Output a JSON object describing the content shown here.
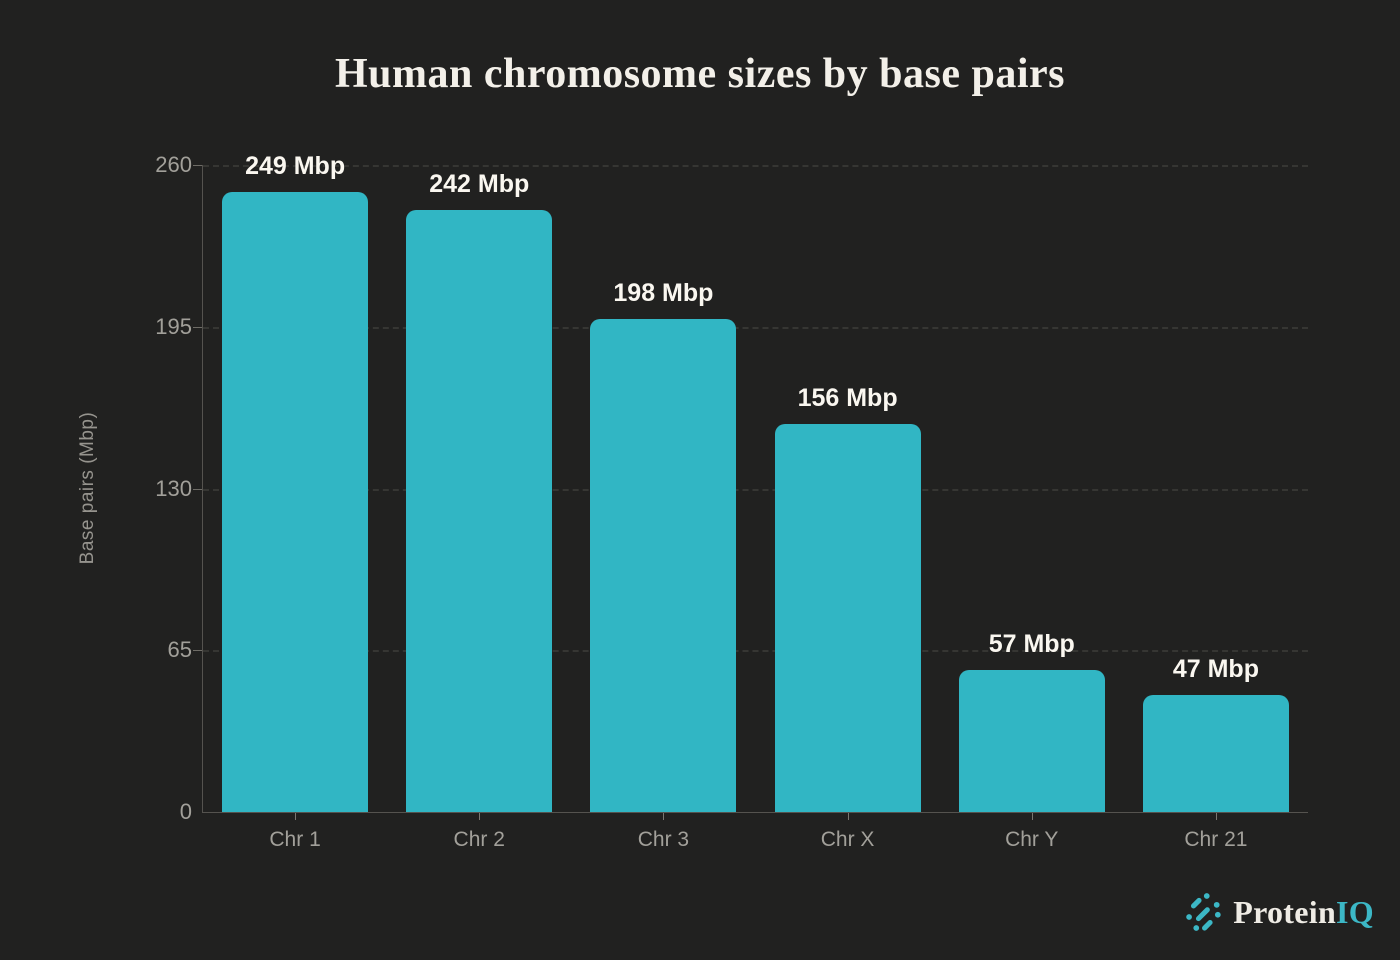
{
  "title": "Human chromosome sizes by base pairs",
  "chart_data": {
    "type": "bar",
    "title": "Human chromosome sizes by base pairs",
    "categories": [
      "Chr 1",
      "Chr 2",
      "Chr 3",
      "Chr X",
      "Chr Y",
      "Chr 21"
    ],
    "values": [
      249,
      242,
      198,
      156,
      57,
      47
    ],
    "bar_labels": [
      "249 Mbp",
      "242 Mbp",
      "198 Mbp",
      "156 Mbp",
      "57 Mbp",
      "47 Mbp"
    ],
    "xlabel": "",
    "ylabel": "Base pairs (Mbp)",
    "ylim": [
      0,
      260
    ],
    "yticks": [
      0,
      65,
      130,
      195,
      260
    ],
    "grid": "horizontal-dashed",
    "legend_position": "none",
    "bar_color": "#31b6c4",
    "background_color": "#212120",
    "value_label_color": "#faf7f0",
    "axis_label_color": "#a2a09a"
  },
  "branding": {
    "logo_text_primary": "Protein",
    "logo_text_accent": "IQ",
    "logo_icon": "molecule-dots-icon",
    "accent_color": "#3cb8c6"
  }
}
